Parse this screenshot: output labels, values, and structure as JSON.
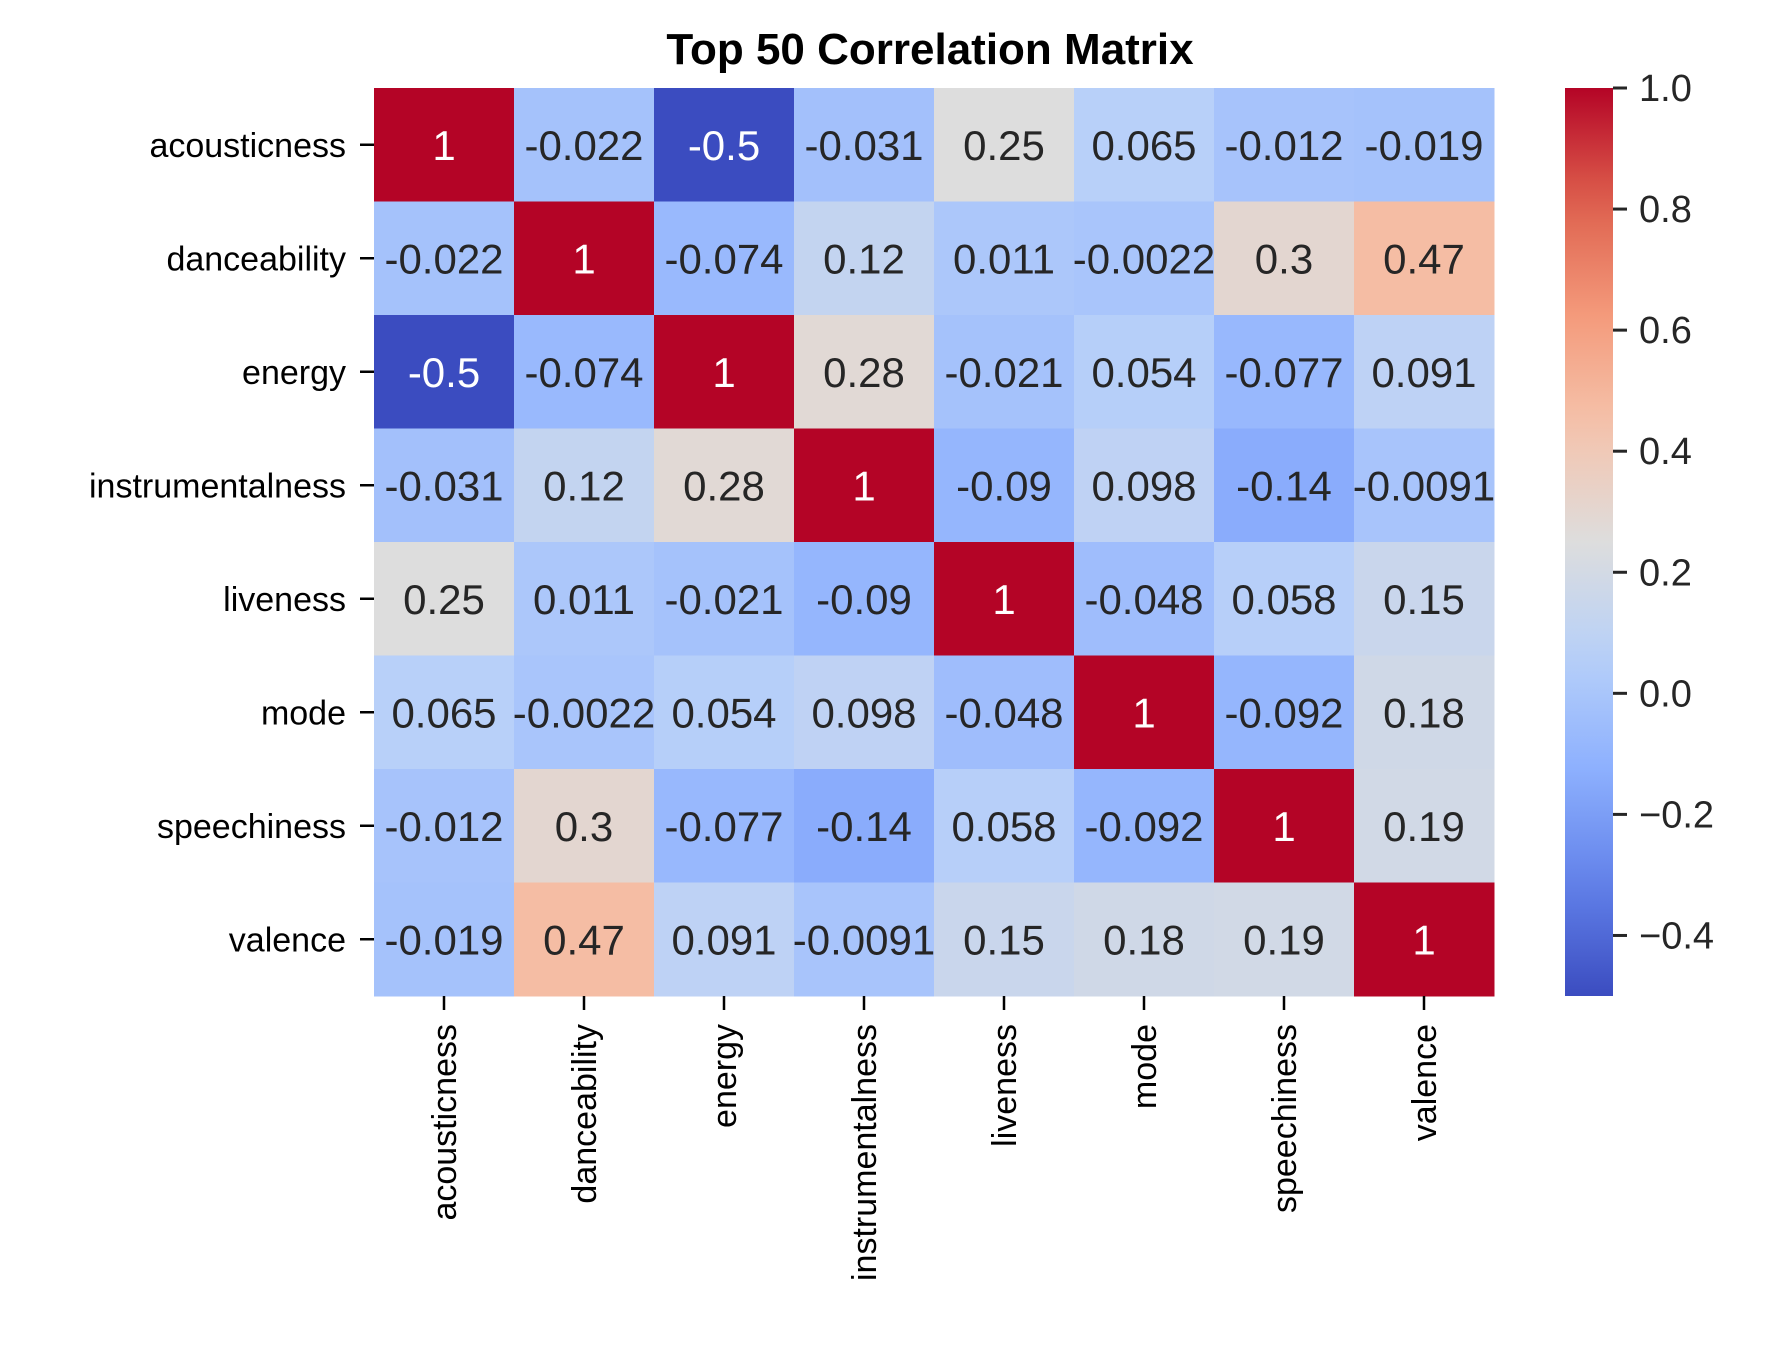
{
  "chart_data": {
    "type": "heatmap",
    "title": "Top 50 Correlation Matrix",
    "xlabel": "",
    "ylabel": "",
    "row_labels": [
      "acousticness",
      "danceability",
      "energy",
      "instrumentalness",
      "liveness",
      "mode",
      "speechiness",
      "valence"
    ],
    "col_labels": [
      "acousticness",
      "danceability",
      "energy",
      "instrumentalness",
      "liveness",
      "mode",
      "speechiness",
      "valence"
    ],
    "values": [
      [
        1,
        -0.022,
        -0.5,
        -0.031,
        0.25,
        0.065,
        -0.012,
        -0.019
      ],
      [
        -0.022,
        1,
        -0.074,
        0.12,
        0.011,
        -0.0022,
        0.3,
        0.47
      ],
      [
        -0.5,
        -0.074,
        1,
        0.28,
        -0.021,
        0.054,
        -0.077,
        0.091
      ],
      [
        -0.031,
        0.12,
        0.28,
        1,
        -0.09,
        0.098,
        -0.14,
        -0.0091
      ],
      [
        0.25,
        0.011,
        -0.021,
        -0.09,
        1,
        -0.048,
        0.058,
        0.15
      ],
      [
        0.065,
        -0.0022,
        0.054,
        0.098,
        -0.048,
        1,
        -0.092,
        0.18
      ],
      [
        -0.012,
        0.3,
        -0.077,
        -0.14,
        0.058,
        -0.092,
        1,
        0.19
      ],
      [
        -0.019,
        0.47,
        0.091,
        -0.0091,
        0.15,
        0.18,
        0.19,
        1
      ]
    ],
    "annotations": [
      [
        "1",
        "-0.022",
        "-0.5",
        "-0.031",
        "0.25",
        "0.065",
        "-0.012",
        "-0.019"
      ],
      [
        "-0.022",
        "1",
        "-0.074",
        "0.12",
        "0.011",
        "-0.0022",
        "0.3",
        "0.47"
      ],
      [
        "-0.5",
        "-0.074",
        "1",
        "0.28",
        "-0.021",
        "0.054",
        "-0.077",
        "0.091"
      ],
      [
        "-0.031",
        "0.12",
        "0.28",
        "1",
        "-0.09",
        "0.098",
        "-0.14",
        "-0.0091"
      ],
      [
        "0.25",
        "0.011",
        "-0.021",
        "-0.09",
        "1",
        "-0.048",
        "0.058",
        "0.15"
      ],
      [
        "0.065",
        "-0.0022",
        "0.054",
        "0.098",
        "-0.048",
        "1",
        "-0.092",
        "0.18"
      ],
      [
        "-0.012",
        "0.3",
        "-0.077",
        "-0.14",
        "0.058",
        "-0.092",
        "1",
        "0.19"
      ],
      [
        "-0.019",
        "0.47",
        "0.091",
        "-0.0091",
        "0.15",
        "0.18",
        "0.19",
        "1"
      ]
    ],
    "colormap": "coolwarm",
    "colorbar": {
      "range": [
        -0.5,
        1.0
      ],
      "ticks": [
        1.0,
        0.8,
        0.6,
        0.4,
        0.2,
        0.0,
        -0.2,
        -0.4
      ],
      "tick_labels": [
        "1.0",
        "0.8",
        "0.6",
        "0.4",
        "0.2",
        "0.0",
        "−0.2",
        "−0.4"
      ]
    },
    "grid": false,
    "legend": "colorbar-right"
  }
}
